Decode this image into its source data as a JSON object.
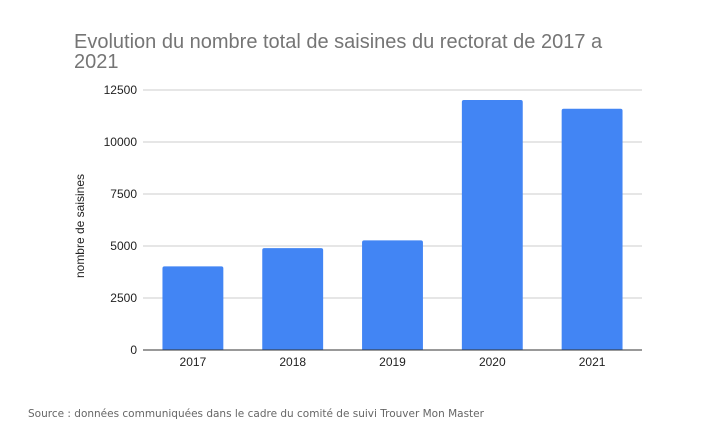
{
  "chart_data": {
    "type": "bar",
    "title_lines": [
      "Evolution du nombre total de saisines du rectorat de 2017 a",
      "2021"
    ],
    "ylabel": "nombre de saisines",
    "xlabel": "",
    "categories": [
      "2017",
      "2018",
      "2019",
      "2020",
      "2021"
    ],
    "series": [
      {
        "values": [
          4020,
          4900,
          5270,
          12020,
          11600
        ]
      }
    ],
    "ylim": [
      0,
      12500
    ],
    "yticks": [
      0,
      2500,
      5000,
      7500,
      10000,
      12500
    ],
    "ytick_labels": [
      "0",
      "2500",
      "5000",
      "7500",
      "10000",
      "12500"
    ],
    "grid": true,
    "bar_color": "#4285f4"
  },
  "source_note": "Source : données communiquées dans le cadre du comité de suivi Trouver Mon Master"
}
